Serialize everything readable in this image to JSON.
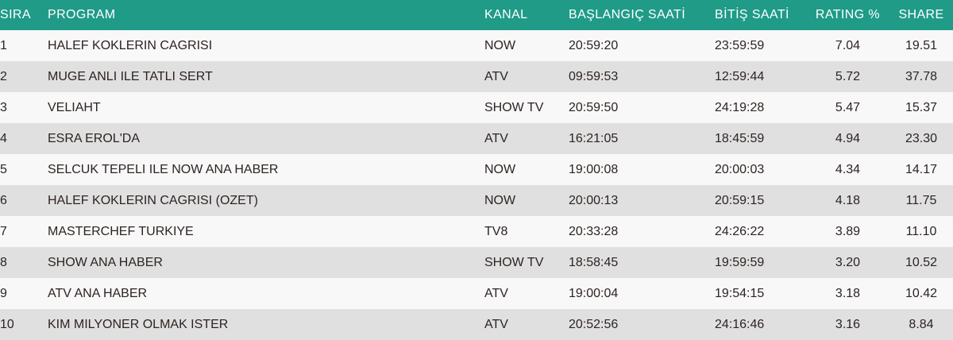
{
  "colors": {
    "header_bg": "#1f9b88",
    "header_text": "#ffffff",
    "row_odd": "#f8f8f8",
    "row_even": "#e0e0e0",
    "cell_text": "#2d2421"
  },
  "table": {
    "columns": {
      "sira": "SIRA",
      "program": "PROGRAM",
      "kanal": "KANAL",
      "start": "BAŞLANGIÇ SAATİ",
      "end": "BİTİŞ SAATİ",
      "rating": "RATING %",
      "share": "SHARE"
    },
    "rows": [
      {
        "sira": "1",
        "program": "HALEF KOKLERIN CAGRISI",
        "kanal": "NOW",
        "start": "20:59:20",
        "end": "23:59:59",
        "rating": "7.04",
        "share": "19.51"
      },
      {
        "sira": "2",
        "program": "MUGE ANLI ILE TATLI SERT",
        "kanal": "ATV",
        "start": "09:59:53",
        "end": "12:59:44",
        "rating": "5.72",
        "share": "37.78"
      },
      {
        "sira": "3",
        "program": "VELIAHT",
        "kanal": "SHOW TV",
        "start": "20:59:50",
        "end": "24:19:28",
        "rating": "5.47",
        "share": "15.37"
      },
      {
        "sira": "4",
        "program": "ESRA EROL'DA",
        "kanal": "ATV",
        "start": "16:21:05",
        "end": "18:45:59",
        "rating": "4.94",
        "share": "23.30"
      },
      {
        "sira": "5",
        "program": "SELCUK TEPELI ILE NOW ANA HABER",
        "kanal": "NOW",
        "start": "19:00:08",
        "end": "20:00:03",
        "rating": "4.34",
        "share": "14.17"
      },
      {
        "sira": "6",
        "program": "HALEF KOKLERIN CAGRISI (OZET)",
        "kanal": "NOW",
        "start": "20:00:13",
        "end": "20:59:15",
        "rating": "4.18",
        "share": "11.75"
      },
      {
        "sira": "7",
        "program": "MASTERCHEF TURKIYE",
        "kanal": "TV8",
        "start": "20:33:28",
        "end": "24:26:22",
        "rating": "3.89",
        "share": "11.10"
      },
      {
        "sira": "8",
        "program": "SHOW ANA HABER",
        "kanal": "SHOW TV",
        "start": "18:58:45",
        "end": "19:59:59",
        "rating": "3.20",
        "share": "10.52"
      },
      {
        "sira": "9",
        "program": "ATV ANA HABER",
        "kanal": "ATV",
        "start": "19:00:04",
        "end": "19:54:15",
        "rating": "3.18",
        "share": "10.42"
      },
      {
        "sira": "10",
        "program": "KIM MILYONER OLMAK ISTER",
        "kanal": "ATV",
        "start": "20:52:56",
        "end": "24:16:46",
        "rating": "3.16",
        "share": "8.84"
      }
    ]
  }
}
